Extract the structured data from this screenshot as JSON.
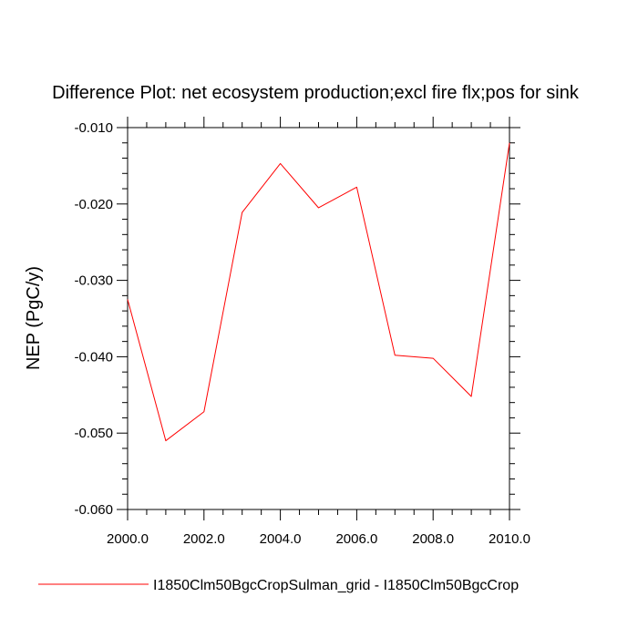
{
  "chart_data": {
    "type": "line",
    "title": "Difference Plot: net ecosystem production;excl fire flx;pos for sink",
    "xlabel": "",
    "ylabel": "NEP  (PgC/y)",
    "xlim": [
      2000,
      2010
    ],
    "ylim": [
      -0.06,
      -0.01
    ],
    "xticks": [
      "2000.0",
      "2002.0",
      "2004.0",
      "2006.0",
      "2008.0",
      "2010.0"
    ],
    "xtick_values": [
      2000,
      2002,
      2004,
      2006,
      2008,
      2010
    ],
    "yticks": [
      "-0.010",
      "-0.020",
      "-0.030",
      "-0.040",
      "-0.050",
      "-0.060"
    ],
    "ytick_values": [
      -0.01,
      -0.02,
      -0.03,
      -0.04,
      -0.05,
      -0.06
    ],
    "grid": false,
    "legend_position": "bottom",
    "series": [
      {
        "name": "I1850Clm50BgcCropSulman_grid - I1850Clm50BgcCrop",
        "color": "#ff0000",
        "x": [
          2000,
          2001,
          2002,
          2003,
          2004,
          2005,
          2006,
          2007,
          2008,
          2009,
          2010
        ],
        "y": [
          -0.0325,
          -0.051,
          -0.0472,
          -0.0211,
          -0.0147,
          -0.0205,
          -0.0178,
          -0.0398,
          -0.0402,
          -0.0452,
          -0.012
        ]
      }
    ]
  }
}
